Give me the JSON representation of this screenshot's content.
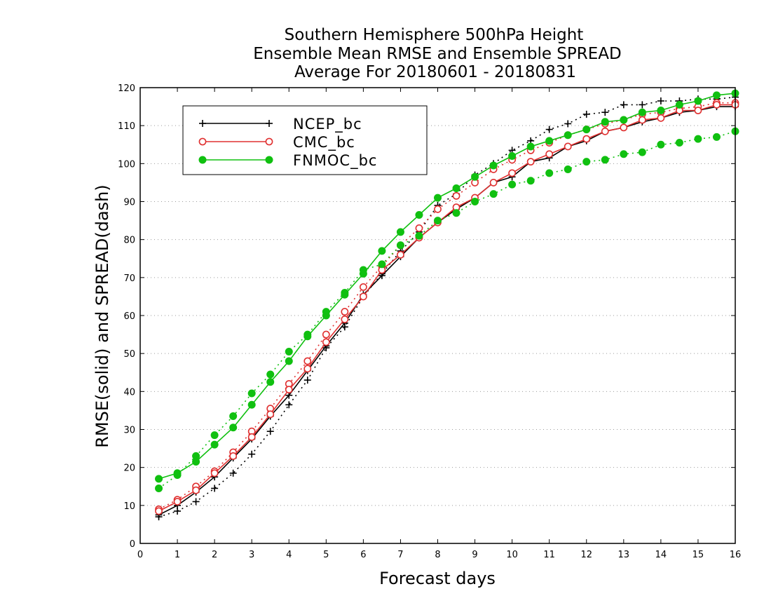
{
  "chart_data": {
    "type": "line",
    "title": [
      "Southern Hemisphere 500hPa Height",
      "Ensemble Mean RMSE and Ensemble SPREAD",
      "Average For 20180601 - 20180831"
    ],
    "xlabel": "Forecast days",
    "ylabel": "RMSE(solid) and SPREAD(dash)",
    "xlim": [
      0,
      16
    ],
    "ylim": [
      0,
      120
    ],
    "x_ticks": [
      "0",
      "1",
      "2",
      "3",
      "4",
      "5",
      "6",
      "7",
      "8",
      "9",
      "10",
      "11",
      "12",
      "13",
      "14",
      "15",
      "16"
    ],
    "y_ticks": [
      "0",
      "10",
      "20",
      "30",
      "40",
      "50",
      "60",
      "70",
      "80",
      "90",
      "100",
      "110",
      "120"
    ],
    "grid": true,
    "legend_position": "top-left",
    "x": [
      0.5,
      1,
      1.5,
      2,
      2.5,
      3,
      3.5,
      4,
      4.5,
      5,
      5.5,
      6,
      6.5,
      7,
      7.5,
      8,
      8.5,
      9,
      9.5,
      10,
      10.5,
      11,
      11.5,
      12,
      12.5,
      13,
      13.5,
      14,
      14.5,
      15,
      15.5,
      16
    ],
    "series": [
      {
        "name": "NCEP_bc",
        "color": "#000000",
        "marker": "plus",
        "rmse": [
          7.5,
          10,
          13.5,
          17.5,
          22.5,
          27.5,
          33.5,
          39,
          45.5,
          52,
          58,
          65.5,
          70.5,
          75.5,
          80.5,
          84.5,
          88,
          91,
          95,
          96.5,
          100.5,
          101.5,
          104.5,
          106,
          108.5,
          109.5,
          111,
          112,
          113.5,
          114,
          115,
          115
        ],
        "spread": [
          7,
          8.5,
          11,
          14.5,
          18.5,
          23.5,
          29.5,
          36.5,
          43,
          51.5,
          57,
          65,
          71,
          77,
          82,
          89,
          92,
          97,
          100,
          103.5,
          106,
          109,
          110.5,
          113,
          113.5,
          115.5,
          115.5,
          116.5,
          116.5,
          117,
          117,
          117.5
        ]
      },
      {
        "name": "CMC_bc",
        "color": "#e03030",
        "marker": "open-circle",
        "rmse": [
          8.5,
          11,
          14,
          18.5,
          23,
          28,
          34,
          40.5,
          46,
          53,
          59,
          65,
          72,
          76,
          80.5,
          84.5,
          88.5,
          91,
          95,
          97.5,
          100.5,
          102.5,
          104.5,
          106.5,
          108.5,
          109.5,
          111.5,
          112,
          114,
          114,
          115.5,
          115.5
        ],
        "spread": [
          9,
          11.5,
          15,
          19,
          24,
          29.5,
          35.5,
          42,
          48,
          55,
          61,
          67.5,
          73,
          78.5,
          83,
          88,
          91.5,
          95,
          98.5,
          101,
          103.5,
          105.5,
          107.5,
          109,
          110.5,
          111.5,
          113,
          113.5,
          114.5,
          115,
          116,
          116
        ]
      },
      {
        "name": "FNMOC_bc",
        "color": "#10c010",
        "marker": "filled-circle",
        "rmse": [
          17,
          18.5,
          21.5,
          26,
          30.5,
          36.5,
          42.5,
          48,
          54.5,
          60,
          65.5,
          71,
          77,
          82,
          86.5,
          91,
          93.5,
          96.5,
          99.5,
          102,
          104.5,
          106,
          107.5,
          109,
          111,
          111.5,
          113.5,
          114,
          115.5,
          116.5,
          118,
          118.5
        ],
        "spread": [
          14.5,
          18,
          23,
          28.5,
          33.5,
          39.5,
          44.5,
          50.5,
          55,
          61,
          66,
          72,
          73.5,
          78.5,
          81,
          85,
          87,
          90,
          92,
          94.5,
          95.5,
          97.5,
          98.5,
          100.5,
          101,
          102.5,
          103,
          105,
          105.5,
          106.5,
          107,
          108.5
        ]
      }
    ]
  }
}
